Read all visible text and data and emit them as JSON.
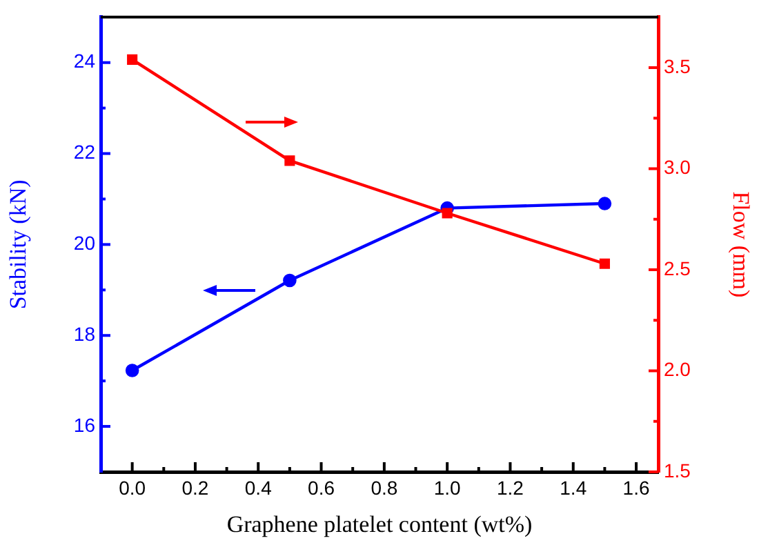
{
  "chart_data": {
    "type": "line",
    "xlabel": "Graphene platelet content (wt%)",
    "ylabel": "Stability (kN)",
    "y2label": "Flow (mm)",
    "x": [
      0,
      0.5,
      1.0,
      1.5
    ],
    "series": [
      {
        "color": "#0000ff",
        "marker": "circle",
        "values": [
          17.23,
          19.21,
          20.8,
          20.9
        ]
      },
      {
        "color": "#ff0000",
        "marker": "square",
        "axis": "y2",
        "values": [
          3.54,
          3.04,
          2.78,
          2.53
        ]
      }
    ],
    "xlim": [
      -0.1,
      1.67
    ],
    "xticks": [
      {
        "value": 0,
        "label": "0.0"
      },
      {
        "value": 0.1,
        "label": null
      },
      {
        "value": 0.2,
        "label": "0.2"
      },
      {
        "value": 0.3,
        "label": null
      },
      {
        "value": 0.4,
        "label": "0.4"
      },
      {
        "value": 0.5,
        "label": null
      },
      {
        "value": 0.6,
        "label": "0.6"
      },
      {
        "value": 0.7,
        "label": null
      },
      {
        "value": 0.8,
        "label": "0.8"
      },
      {
        "value": 0.9,
        "label": null
      },
      {
        "value": 1.0,
        "label": "1.0"
      },
      {
        "value": 1.1,
        "label": null
      },
      {
        "value": 1.2,
        "label": "1.2"
      },
      {
        "value": 1.3,
        "label": null
      },
      {
        "value": 1.4,
        "label": "1.4"
      },
      {
        "value": 1.5,
        "label": null
      },
      {
        "value": 1.6,
        "label": "1.6"
      }
    ],
    "ylim": [
      15,
      25
    ],
    "yticks": [
      16,
      {
        "value": 17,
        "label": null
      },
      18,
      {
        "value": 19,
        "label": null
      },
      20,
      {
        "value": 21,
        "label": null
      },
      22,
      {
        "value": 23,
        "label": null
      },
      24
    ],
    "y2lim": [
      1.5,
      3.75
    ],
    "y2ticks": [
      {
        "value": 1.5,
        "label": "1.5"
      },
      {
        "value": 1.75,
        "label": null
      },
      {
        "value": 2.0,
        "label": "2.0"
      },
      {
        "value": 2.25,
        "label": null
      },
      {
        "value": 2.5,
        "label": "2.5"
      },
      {
        "value": 2.75,
        "label": null
      },
      {
        "value": 3.0,
        "label": "3.0"
      },
      {
        "value": 3.25,
        "label": null
      },
      {
        "value": 3.5,
        "label": "3.5"
      }
    ],
    "grid": false
  }
}
